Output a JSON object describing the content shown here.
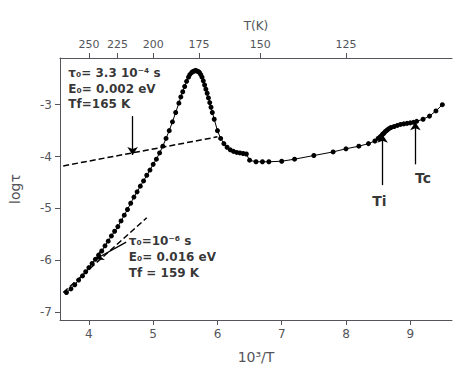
{
  "chart_data": {
    "type": "line",
    "xlabel": "10³/T",
    "ylabel": "logτ",
    "top_xlabel": "T(K)",
    "xlim": [
      3.55,
      9.65
    ],
    "ylim": [
      -7.15,
      -2.1
    ],
    "xticks": [
      4,
      5,
      6,
      7,
      8,
      9
    ],
    "yticks": [
      -7,
      -6,
      -5,
      -4,
      -3
    ],
    "top_xticks": [
      {
        "value": 4,
        "label": "250"
      },
      {
        "value": 4.444444444444445,
        "label": "225"
      },
      {
        "value": 5,
        "label": "200"
      },
      {
        "value": 5.714285714285714,
        "label": "175"
      },
      {
        "value": 6.666666666666667,
        "label": "150"
      },
      {
        "value": 8,
        "label": "125"
      }
    ],
    "grid": false,
    "series": [
      {
        "type": "line",
        "marker": "circle",
        "line_style": "solid",
        "color": "#000000",
        "x": [
          3.65,
          3.72,
          3.78,
          3.84,
          3.9,
          3.95,
          4.0,
          4.05,
          4.1,
          4.15,
          4.2,
          4.25,
          4.3,
          4.35,
          4.4,
          4.45,
          4.5,
          4.55,
          4.6,
          4.65,
          4.7,
          4.75,
          4.8,
          4.85,
          4.9,
          4.95,
          5.0,
          5.05,
          5.1,
          5.15,
          5.2,
          5.25,
          5.3,
          5.35,
          5.4,
          5.43,
          5.46,
          5.49,
          5.52,
          5.55,
          5.57,
          5.6,
          5.62,
          5.64,
          5.66,
          5.68,
          5.7,
          5.72,
          5.74,
          5.76,
          5.78,
          5.8,
          5.82,
          5.84,
          5.86,
          5.88,
          5.9,
          5.92,
          5.95,
          6.0,
          6.05,
          6.1,
          6.15,
          6.2,
          6.25,
          6.3,
          6.35,
          6.4,
          6.45,
          6.5,
          6.6,
          6.7,
          6.8,
          7.0,
          7.2,
          7.5,
          7.8,
          8.0,
          8.2,
          8.35,
          8.45,
          8.5,
          8.53,
          8.55,
          8.57,
          8.59,
          8.61,
          8.63,
          8.65,
          8.67,
          8.7,
          8.75,
          8.8,
          8.85,
          8.9,
          8.95,
          9.0,
          9.05,
          9.1,
          9.2,
          9.3,
          9.4,
          9.5
        ],
        "values": [
          -6.62,
          -6.55,
          -6.47,
          -6.38,
          -6.3,
          -6.22,
          -6.14,
          -6.06,
          -5.98,
          -5.9,
          -5.82,
          -5.72,
          -5.63,
          -5.53,
          -5.44,
          -5.35,
          -5.24,
          -5.13,
          -5.02,
          -4.9,
          -4.78,
          -4.68,
          -4.57,
          -4.47,
          -4.36,
          -4.26,
          -4.15,
          -4.05,
          -3.93,
          -3.8,
          -3.65,
          -3.5,
          -3.33,
          -3.15,
          -2.97,
          -2.85,
          -2.75,
          -2.65,
          -2.55,
          -2.47,
          -2.42,
          -2.38,
          -2.36,
          -2.35,
          -2.34,
          -2.35,
          -2.36,
          -2.38,
          -2.42,
          -2.47,
          -2.54,
          -2.62,
          -2.7,
          -2.78,
          -2.87,
          -2.96,
          -3.05,
          -3.15,
          -3.28,
          -3.5,
          -3.65,
          -3.75,
          -3.82,
          -3.87,
          -3.9,
          -3.92,
          -3.93,
          -3.94,
          -3.95,
          -4.07,
          -4.1,
          -4.1,
          -4.1,
          -4.09,
          -4.05,
          -3.98,
          -3.91,
          -3.85,
          -3.8,
          -3.75,
          -3.7,
          -3.65,
          -3.62,
          -3.6,
          -3.57,
          -3.55,
          -3.52,
          -3.5,
          -3.48,
          -3.46,
          -3.44,
          -3.42,
          -3.4,
          -3.38,
          -3.37,
          -3.36,
          -3.35,
          -3.34,
          -3.32,
          -3.28,
          -3.22,
          -3.12,
          -3.0
        ]
      },
      {
        "type": "line",
        "line_style": "dashed",
        "color": "#000000",
        "x": [
          3.6,
          6.0
        ],
        "values": [
          -4.18,
          -3.62
        ]
      },
      {
        "type": "line",
        "line_style": "dashed",
        "color": "#000000",
        "x": [
          3.6,
          4.9
        ],
        "values": [
          -6.62,
          -5.18
        ]
      }
    ],
    "annotations": [
      {
        "text": "τ₀= 3.3 10⁻⁴ s",
        "x": 3.68,
        "y": -2.28
      },
      {
        "text": "E₀= 0.002 eV",
        "x": 3.68,
        "y": -2.58
      },
      {
        "text": "Tf=165 K",
        "x": 3.68,
        "y": -2.88
      },
      {
        "text": "τ₀=10⁻⁶ s",
        "x": 4.62,
        "y": -5.52
      },
      {
        "text": "E₀= 0.016 eV",
        "x": 4.62,
        "y": -5.82
      },
      {
        "text": "Tf = 159 K",
        "x": 4.62,
        "y": -6.12
      }
    ],
    "arrows": [
      {
        "from": [
          4.68,
          -3.22
        ],
        "to": [
          4.68,
          -3.97
        ]
      },
      {
        "from": [
          4.58,
          -5.65
        ],
        "to": [
          4.1,
          -5.98
        ]
      },
      {
        "from": [
          8.57,
          -4.55
        ],
        "to": [
          8.57,
          -3.58
        ],
        "label": "Ti",
        "label_at": [
          8.52,
          -4.72
        ]
      },
      {
        "from": [
          9.08,
          -4.15
        ],
        "to": [
          9.08,
          -3.34
        ],
        "label": "Tc",
        "label_at": [
          9.2,
          -4.28
        ]
      }
    ]
  }
}
